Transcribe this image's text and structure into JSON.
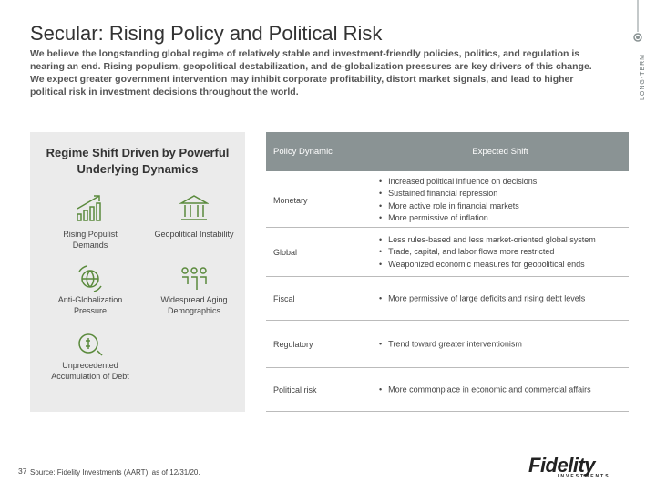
{
  "header": {
    "title": "Secular: Rising Policy and Political Risk",
    "intro": "We believe the longstanding global regime of relatively stable and investment-friendly policies, politics, and regulation is nearing an end. Rising populism, geopolitical destabilization, and de-globalization pressures are key drivers of this change. We expect greater government intervention may inhibit corporate profitability, distort market signals, and lead to higher political risk in investment decisions throughout the world.",
    "side_label": "LONG-TERM"
  },
  "panel": {
    "title": "Regime Shift Driven by Powerful Underlying Dynamics",
    "drivers": [
      "Rising Populist Demands",
      "Geopolitical Instability",
      "Anti-Globalization Pressure",
      "Widespread Aging Demographics",
      "Unprecedented Accumulation of Debt"
    ]
  },
  "table": {
    "headers": [
      "Policy Dynamic",
      "Expected Shift"
    ],
    "rows": [
      {
        "dynamic": "Monetary",
        "shifts": [
          "Increased political influence on decisions",
          "Sustained financial repression",
          "More active role in financial markets",
          "More permissive of inflation"
        ]
      },
      {
        "dynamic": "Global",
        "shifts": [
          "Less rules-based and less market-oriented global system",
          "Trade, capital, and labor flows more restricted",
          "Weaponized economic measures for geopolitical ends"
        ]
      },
      {
        "dynamic": "Fiscal",
        "shifts": [
          "More permissive of large deficits and rising debt levels"
        ]
      },
      {
        "dynamic": "Regulatory",
        "shifts": [
          "Trend toward greater interventionism"
        ]
      },
      {
        "dynamic": "Political risk",
        "shifts": [
          "More commonplace in economic and commercial affairs"
        ]
      }
    ]
  },
  "footer": {
    "page": "37",
    "source": "Source: Fidelity Investments (AART), as of 12/31/20.",
    "logo": "Fidelity",
    "logo_sub": "INVESTMENTS"
  }
}
